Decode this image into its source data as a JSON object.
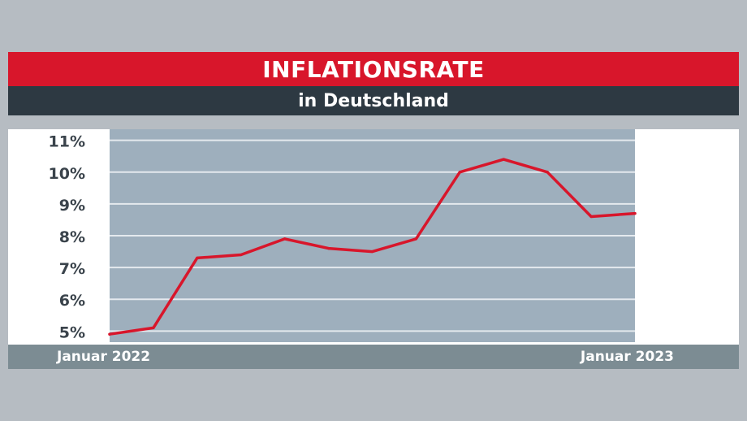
{
  "header": {
    "title": "INFLATIONSRATE",
    "subtitle": "in Deutschland"
  },
  "footer": {
    "start_label": "Januar 2022",
    "end_label": "Januar 2023"
  },
  "colors": {
    "title_bg": "#d8162b",
    "subtitle_bg": "#2d3942",
    "plot_bg": "#9eafbd",
    "line": "#d8162b",
    "footer_bg": "#7c8c93",
    "tick_text": "#3a434b"
  },
  "chart_data": {
    "type": "line",
    "title": "INFLATIONSRATE",
    "subtitle": "in Deutschland",
    "x": [
      "Januar 2022",
      "",
      "",
      "",
      "",
      "",
      "",
      "",
      "",
      "",
      "",
      "",
      "Januar 2023"
    ],
    "series": [
      {
        "values": [
          4.9,
          5.1,
          7.3,
          7.4,
          7.9,
          7.6,
          7.5,
          7.9,
          10.0,
          10.4,
          10.0,
          8.6,
          8.7
        ]
      }
    ],
    "ylim": [
      4.65,
      11.35
    ],
    "yticks": [
      5,
      6,
      7,
      8,
      9,
      10,
      11
    ],
    "ytick_labels": [
      "5%",
      "6%",
      "7%",
      "8%",
      "9%",
      "10%",
      "11%"
    ],
    "grid": true,
    "legend": "none"
  }
}
